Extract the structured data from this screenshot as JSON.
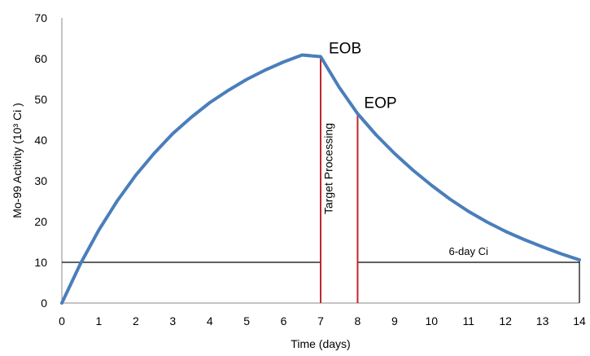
{
  "chart_data": {
    "type": "line",
    "xlabel": "Time (days)",
    "ylabel": "Mo-99 Activity (10³ Ci )",
    "xlim": [
      0,
      14
    ],
    "ylim": [
      0,
      70
    ],
    "x_ticks": [
      0,
      1,
      2,
      3,
      4,
      5,
      6,
      7,
      8,
      9,
      10,
      11,
      12,
      13,
      14
    ],
    "y_ticks": [
      0,
      10,
      20,
      30,
      40,
      50,
      60,
      70
    ],
    "grid": false,
    "legend": "none",
    "series": [
      {
        "color": "#4a7ebb",
        "x": [
          0,
          0.5,
          1,
          1.5,
          2,
          2.5,
          3,
          3.5,
          4,
          4.5,
          5,
          5.5,
          6,
          6.5,
          7,
          7.5,
          8,
          8.5,
          9,
          9.5,
          10,
          10.5,
          11,
          11.5,
          12,
          12.5,
          13,
          13.5,
          14
        ],
        "y": [
          0,
          9.6,
          17.9,
          25.1,
          31.4,
          36.8,
          41.6,
          45.6,
          49.2,
          52.2,
          54.9,
          57.2,
          59.2,
          60.9,
          60.5,
          53.0,
          46.5,
          41.3,
          36.7,
          32.6,
          28.9,
          25.5,
          22.5,
          19.9,
          17.6,
          15.6,
          13.8,
          12.1,
          10.6
        ]
      }
    ],
    "reference_lines": {
      "horizontal_level": 10,
      "eob_x": 7,
      "eob_y": 60.5,
      "eop_x": 8,
      "eop_y": 46.5,
      "end_x": 14,
      "end_y": 10.6,
      "line_color": "#c0272d"
    },
    "annotations": {
      "eob": "EOB",
      "eop": "EOP",
      "target_processing": "Target Processing",
      "six_day": "6-day Ci"
    }
  }
}
